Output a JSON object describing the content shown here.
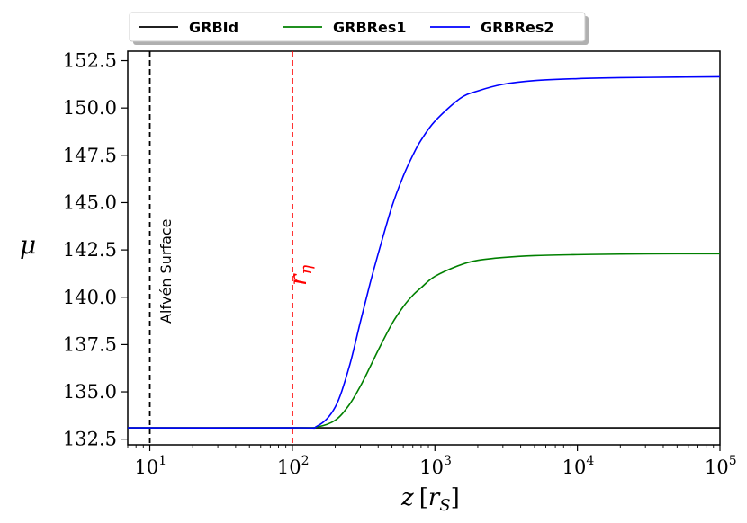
{
  "chart_data": {
    "type": "line",
    "xscale": "log",
    "xlim": [
      7,
      100000
    ],
    "ylim": [
      132.2,
      153.0
    ],
    "xlabel": "z [r_S]",
    "ylabel": "μ",
    "x_ticks": [
      {
        "value": 10,
        "base": "10",
        "exp": "1"
      },
      {
        "value": 100,
        "base": "10",
        "exp": "2"
      },
      {
        "value": 1000,
        "base": "10",
        "exp": "3"
      },
      {
        "value": 10000,
        "base": "10",
        "exp": "4"
      },
      {
        "value": 100000,
        "base": "10",
        "exp": "5"
      }
    ],
    "y_ticks": [
      132.5,
      135.0,
      137.5,
      140.0,
      142.5,
      145.0,
      147.5,
      150.0,
      152.5
    ],
    "y_tick_labels": [
      "132.5",
      "135.0",
      "137.5",
      "140.0",
      "142.5",
      "145.0",
      "147.5",
      "150.0",
      "152.5"
    ],
    "series": [
      {
        "name": "GRBId",
        "color": "#000000",
        "x": [
          7,
          100,
          1000,
          10000,
          100000
        ],
        "y": [
          133.1,
          133.1,
          133.1,
          133.1,
          133.1
        ]
      },
      {
        "name": "GRBRes1",
        "color": "#008000",
        "x": [
          7,
          100,
          150,
          200,
          250,
          300,
          350,
          400,
          500,
          600,
          700,
          800,
          1000,
          1500,
          2000,
          3000,
          5000,
          10000,
          20000,
          50000,
          100000
        ],
        "y": [
          133.1,
          133.1,
          133.15,
          133.5,
          134.3,
          135.3,
          136.3,
          137.2,
          138.6,
          139.5,
          140.1,
          140.5,
          141.1,
          141.7,
          141.95,
          142.1,
          142.2,
          142.25,
          142.28,
          142.3,
          142.3
        ]
      },
      {
        "name": "GRBRes2",
        "color": "#0000ff",
        "x": [
          7,
          100,
          150,
          200,
          250,
          300,
          350,
          400,
          500,
          600,
          700,
          800,
          1000,
          1500,
          2000,
          3000,
          5000,
          10000,
          20000,
          50000,
          100000
        ],
        "y": [
          133.1,
          133.1,
          133.2,
          134.2,
          136.3,
          138.7,
          140.7,
          142.3,
          144.8,
          146.4,
          147.5,
          148.3,
          149.3,
          150.5,
          150.9,
          151.25,
          151.45,
          151.55,
          151.6,
          151.63,
          151.65
        ]
      }
    ],
    "vlines": [
      {
        "x": 10,
        "color": "#000000",
        "label": "Alfvén Surface"
      },
      {
        "x": 100,
        "color": "#ff0000",
        "label": "r",
        "subscript": "η"
      }
    ],
    "legend": {
      "placement": "top-center",
      "entries": [
        "GRBId",
        "GRBRes1",
        "GRBRes2"
      ]
    },
    "grid": false
  }
}
